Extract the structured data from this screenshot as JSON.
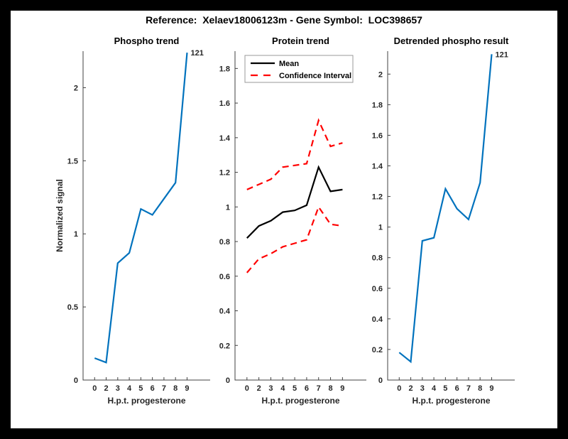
{
  "header": {
    "title": "Reference:  Xelaev18006123m - Gene Symbol:  LOC398657"
  },
  "chart_data": [
    {
      "type": "line",
      "title": "Phospho trend",
      "xlabel": "H.p.t. progesterone",
      "ylabel": "Normalized signal",
      "categories": [
        "0",
        "2",
        "3",
        "4",
        "5",
        "6",
        "7",
        "8",
        "9"
      ],
      "yticks": [
        "0",
        "0.5",
        "1",
        "1.5",
        "2"
      ],
      "ylim": [
        0,
        2.25
      ],
      "grid": false,
      "series": [
        {
          "name": "phospho-signal",
          "color": "#0072BD",
          "dashed": false,
          "values": [
            0.15,
            0.12,
            0.8,
            0.87,
            1.17,
            1.13,
            1.24,
            1.35,
            2.24
          ]
        }
      ],
      "annotation": {
        "text": "121"
      }
    },
    {
      "type": "line",
      "title": "Protein trend",
      "xlabel": "H.p.t. progesterone",
      "ylabel": "",
      "categories": [
        "0",
        "2",
        "3",
        "4",
        "5",
        "6",
        "7",
        "8",
        "9"
      ],
      "yticks": [
        "0",
        "0.2",
        "0.4",
        "0.6",
        "0.8",
        "1",
        "1.2",
        "1.4",
        "1.6",
        "1.8"
      ],
      "ylim": [
        0,
        1.9
      ],
      "grid": false,
      "legend": {
        "position": "top-left",
        "entries": [
          {
            "label": "Mean",
            "color": "#000000",
            "dashed": false
          },
          {
            "label": "Confidence Interval",
            "color": "#FF0000",
            "dashed": true
          }
        ]
      },
      "series": [
        {
          "name": "mean",
          "color": "#000000",
          "dashed": false,
          "values": [
            0.82,
            0.89,
            0.92,
            0.97,
            0.98,
            1.01,
            1.23,
            1.09,
            1.1
          ]
        },
        {
          "name": "ci-upper",
          "color": "#FF0000",
          "dashed": true,
          "values": [
            1.1,
            1.13,
            1.16,
            1.23,
            1.24,
            1.25,
            1.5,
            1.35,
            1.37
          ]
        },
        {
          "name": "ci-lower",
          "color": "#FF0000",
          "dashed": true,
          "values": [
            0.62,
            0.7,
            0.73,
            0.77,
            0.79,
            0.81,
            1.0,
            0.9,
            0.89
          ]
        }
      ]
    },
    {
      "type": "line",
      "title": "Detrended phospho result",
      "xlabel": "H.p.t. progesterone",
      "ylabel": "",
      "categories": [
        "0",
        "2",
        "3",
        "4",
        "5",
        "6",
        "7",
        "8",
        "9"
      ],
      "yticks": [
        "0",
        "0.2",
        "0.4",
        "0.6",
        "0.8",
        "1",
        "1.2",
        "1.4",
        "1.6",
        "1.8",
        "2"
      ],
      "ylim": [
        0,
        2.15
      ],
      "grid": false,
      "series": [
        {
          "name": "detrended-signal",
          "color": "#0072BD",
          "dashed": false,
          "values": [
            0.18,
            0.12,
            0.91,
            0.93,
            1.25,
            1.12,
            1.05,
            1.29,
            2.13
          ]
        }
      ],
      "annotation": {
        "text": "121"
      }
    }
  ]
}
